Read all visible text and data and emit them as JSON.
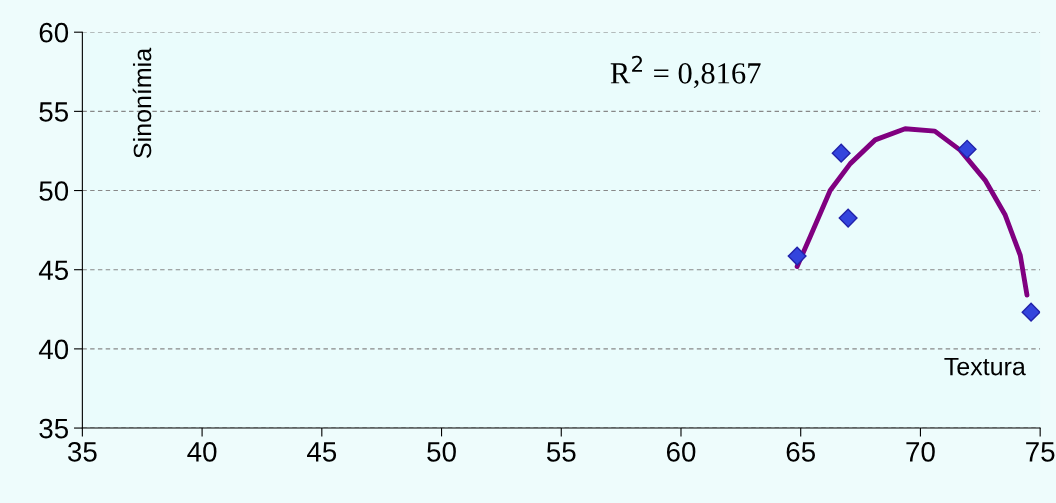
{
  "chart_data": {
    "type": "scatter",
    "xlabel": "Textura",
    "ylabel": "Sinonímia",
    "annotations": [
      "R$^{2}$ = 0,8167"
    ],
    "xlim": [
      35,
      75
    ],
    "xticks": [
      35,
      40,
      45,
      50,
      55,
      60,
      65,
      70,
      75
    ],
    "ylim": [
      35,
      60
    ],
    "yticks": [
      35,
      40,
      45,
      50,
      55,
      60
    ],
    "grid": "y",
    "marker": "diamond",
    "series": [
      {
        "color": "#3344dd",
        "x": [
          64.85,
          66.69,
          66.98,
          71.95,
          74.62
        ],
        "values": [
          45.86,
          52.36,
          48.26,
          52.61,
          42.32
        ]
      },
      {
        "type": "line",
        "color": "#800080",
        "marker": "none",
        "x": [
          64.85,
          65.4,
          66.23,
          67.07,
          68.11,
          69.36,
          70.6,
          71.66,
          72.7,
          73.54,
          74.17,
          74.45
        ],
        "values": [
          45.2,
          47.1,
          50.0,
          51.7,
          53.2,
          53.9,
          53.75,
          52.55,
          50.66,
          48.45,
          45.9,
          43.4
        ]
      }
    ]
  }
}
